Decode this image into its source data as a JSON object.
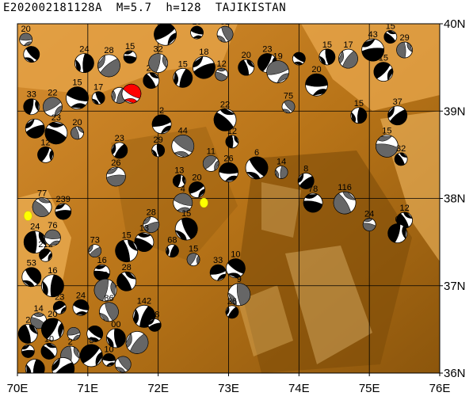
{
  "title": "E202002181128A  M=5.7  h=128  TAJIKISTAN",
  "map": {
    "lon_min": 70,
    "lon_max": 76,
    "lat_min": 36,
    "lat_max": 40,
    "lon_labels": [
      "70E",
      "71E",
      "72E",
      "73E",
      "74E",
      "75E",
      "76E"
    ],
    "lat_labels": [
      "36N",
      "37N",
      "38N",
      "39N",
      "40N"
    ],
    "terrain_colors": {
      "high": "#6f4406",
      "mid": "#a8690e",
      "low": "#e3a04a",
      "plain": "#f2b560"
    }
  },
  "events": [
    {
      "lon": 70.12,
      "lat": 39.82,
      "depth": "20"
    },
    {
      "lon": 70.2,
      "lat": 39.65,
      "depth": ""
    },
    {
      "lon": 70.95,
      "lat": 39.55,
      "depth": "24"
    },
    {
      "lon": 71.3,
      "lat": 39.52,
      "depth": "28"
    },
    {
      "lon": 71.6,
      "lat": 39.62,
      "depth": "15"
    },
    {
      "lon": 71.9,
      "lat": 39.35,
      "depth": "25"
    },
    {
      "lon": 72.0,
      "lat": 39.55,
      "depth": "32"
    },
    {
      "lon": 72.1,
      "lat": 39.88,
      "depth": "37"
    },
    {
      "lon": 72.55,
      "lat": 39.9,
      "depth": "15"
    },
    {
      "lon": 72.95,
      "lat": 39.88,
      "depth": "32"
    },
    {
      "lon": 72.35,
      "lat": 39.38,
      "depth": "15"
    },
    {
      "lon": 72.65,
      "lat": 39.5,
      "depth": "18"
    },
    {
      "lon": 72.9,
      "lat": 39.42,
      "depth": "12"
    },
    {
      "lon": 73.25,
      "lat": 39.5,
      "depth": "20"
    },
    {
      "lon": 73.55,
      "lat": 39.55,
      "depth": "23"
    },
    {
      "lon": 73.7,
      "lat": 39.45,
      "depth": "19"
    },
    {
      "lon": 74.0,
      "lat": 39.6,
      "depth": ""
    },
    {
      "lon": 74.4,
      "lat": 39.62,
      "depth": "15"
    },
    {
      "lon": 74.7,
      "lat": 39.6,
      "depth": "17"
    },
    {
      "lon": 75.05,
      "lat": 39.7,
      "depth": "43"
    },
    {
      "lon": 75.3,
      "lat": 39.85,
      "depth": "15"
    },
    {
      "lon": 75.5,
      "lat": 39.7,
      "depth": "29"
    },
    {
      "lon": 75.2,
      "lat": 39.45,
      "depth": "15"
    },
    {
      "lon": 74.25,
      "lat": 39.3,
      "depth": "20"
    },
    {
      "lon": 73.85,
      "lat": 39.05,
      "depth": "75"
    },
    {
      "lon": 74.85,
      "lat": 38.95,
      "depth": "15"
    },
    {
      "lon": 75.4,
      "lat": 38.95,
      "depth": "37"
    },
    {
      "lon": 75.25,
      "lat": 38.6,
      "depth": "15"
    },
    {
      "lon": 75.45,
      "lat": 38.45,
      "depth": "32"
    },
    {
      "lon": 70.2,
      "lat": 39.05,
      "depth": "33"
    },
    {
      "lon": 70.5,
      "lat": 39.05,
      "depth": "22"
    },
    {
      "lon": 70.85,
      "lat": 39.15,
      "depth": "15"
    },
    {
      "lon": 71.15,
      "lat": 39.15,
      "depth": "17"
    },
    {
      "lon": 71.45,
      "lat": 39.18,
      "depth": ""
    },
    {
      "lon": 70.25,
      "lat": 38.8,
      "depth": ""
    },
    {
      "lon": 70.55,
      "lat": 38.75,
      "depth": "23"
    },
    {
      "lon": 70.85,
      "lat": 38.75,
      "depth": "20"
    },
    {
      "lon": 70.4,
      "lat": 38.5,
      "depth": "12"
    },
    {
      "lon": 72.05,
      "lat": 38.85,
      "depth": "2"
    },
    {
      "lon": 72.35,
      "lat": 38.6,
      "depth": "44"
    },
    {
      "lon": 72.0,
      "lat": 38.55,
      "depth": "29"
    },
    {
      "lon": 71.45,
      "lat": 38.55,
      "depth": "23"
    },
    {
      "lon": 71.4,
      "lat": 38.25,
      "depth": "26"
    },
    {
      "lon": 72.95,
      "lat": 38.9,
      "depth": "22"
    },
    {
      "lon": 73.05,
      "lat": 38.65,
      "depth": "12"
    },
    {
      "lon": 72.75,
      "lat": 38.4,
      "depth": "11"
    },
    {
      "lon": 73.0,
      "lat": 38.3,
      "depth": "26"
    },
    {
      "lon": 73.4,
      "lat": 38.35,
      "depth": "6"
    },
    {
      "lon": 73.75,
      "lat": 38.3,
      "depth": "14"
    },
    {
      "lon": 74.1,
      "lat": 38.2,
      "depth": "8"
    },
    {
      "lon": 74.2,
      "lat": 37.95,
      "depth": "78"
    },
    {
      "lon": 74.65,
      "lat": 37.95,
      "depth": "116"
    },
    {
      "lon": 72.3,
      "lat": 38.2,
      "depth": "13"
    },
    {
      "lon": 72.55,
      "lat": 38.1,
      "depth": "20"
    },
    {
      "lon": 72.35,
      "lat": 37.95,
      "depth": "4"
    },
    {
      "lon": 72.4,
      "lat": 37.65,
      "depth": "15"
    },
    {
      "lon": 72.2,
      "lat": 37.4,
      "depth": "68"
    },
    {
      "lon": 71.9,
      "lat": 37.7,
      "depth": "28"
    },
    {
      "lon": 71.8,
      "lat": 37.5,
      "depth": "13"
    },
    {
      "lon": 71.55,
      "lat": 37.4,
      "depth": "15"
    },
    {
      "lon": 72.5,
      "lat": 37.3,
      "depth": "15"
    },
    {
      "lon": 72.85,
      "lat": 37.15,
      "depth": "33"
    },
    {
      "lon": 73.1,
      "lat": 37.2,
      "depth": "10"
    },
    {
      "lon": 73.15,
      "lat": 36.9,
      "depth": "9"
    },
    {
      "lon": 73.05,
      "lat": 36.7,
      "depth": "26"
    },
    {
      "lon": 70.65,
      "lat": 37.85,
      "depth": "239"
    },
    {
      "lon": 70.35,
      "lat": 37.9,
      "depth": "77"
    },
    {
      "lon": 70.25,
      "lat": 37.5,
      "depth": "24"
    },
    {
      "lon": 70.4,
      "lat": 37.35,
      "depth": "212"
    },
    {
      "lon": 70.5,
      "lat": 37.55,
      "depth": "76"
    },
    {
      "lon": 70.2,
      "lat": 37.1,
      "depth": "53"
    },
    {
      "lon": 70.5,
      "lat": 37.0,
      "depth": "16"
    },
    {
      "lon": 71.1,
      "lat": 37.4,
      "depth": "73"
    },
    {
      "lon": 71.2,
      "lat": 37.15,
      "depth": "16"
    },
    {
      "lon": 71.55,
      "lat": 37.05,
      "depth": "28"
    },
    {
      "lon": 71.25,
      "lat": 36.95,
      "depth": "6"
    },
    {
      "lon": 70.6,
      "lat": 36.75,
      "depth": "23"
    },
    {
      "lon": 70.9,
      "lat": 36.75,
      "depth": "24"
    },
    {
      "lon": 71.3,
      "lat": 36.7,
      "depth": "86"
    },
    {
      "lon": 71.8,
      "lat": 36.65,
      "depth": "142"
    },
    {
      "lon": 71.95,
      "lat": 36.55,
      "depth": "98"
    },
    {
      "lon": 70.3,
      "lat": 36.6,
      "depth": "14"
    },
    {
      "lon": 70.15,
      "lat": 36.45,
      "depth": "2"
    },
    {
      "lon": 70.5,
      "lat": 36.5,
      "depth": "20"
    },
    {
      "lon": 70.8,
      "lat": 36.45,
      "depth": ""
    },
    {
      "lon": 71.1,
      "lat": 36.45,
      "depth": ""
    },
    {
      "lon": 71.4,
      "lat": 36.4,
      "depth": "00"
    },
    {
      "lon": 71.7,
      "lat": 36.35,
      "depth": ""
    },
    {
      "lon": 70.15,
      "lat": 36.25,
      "depth": "8"
    },
    {
      "lon": 70.45,
      "lat": 36.25,
      "depth": "10"
    },
    {
      "lon": 70.75,
      "lat": 36.2,
      "depth": "2"
    },
    {
      "lon": 71.05,
      "lat": 36.2,
      "depth": "3"
    },
    {
      "lon": 71.3,
      "lat": 36.15,
      "depth": "10"
    },
    {
      "lon": 71.5,
      "lat": 36.1,
      "depth": ""
    },
    {
      "lon": 70.25,
      "lat": 36.05,
      "depth": ""
    },
    {
      "lon": 70.65,
      "lat": 36.05,
      "depth": ""
    },
    {
      "lon": 75.0,
      "lat": 37.7,
      "depth": "24"
    },
    {
      "lon": 75.5,
      "lat": 37.75,
      "depth": "12"
    },
    {
      "lon": 75.4,
      "lat": 37.6,
      "depth": "0"
    }
  ],
  "highlight_event": {
    "lon": 71.62,
    "lat": 39.2,
    "color": "#ff0000"
  },
  "yellow_markers": [
    {
      "lon": 72.65,
      "lat": 37.95
    },
    {
      "lon": 70.15,
      "lat": 37.8
    }
  ]
}
